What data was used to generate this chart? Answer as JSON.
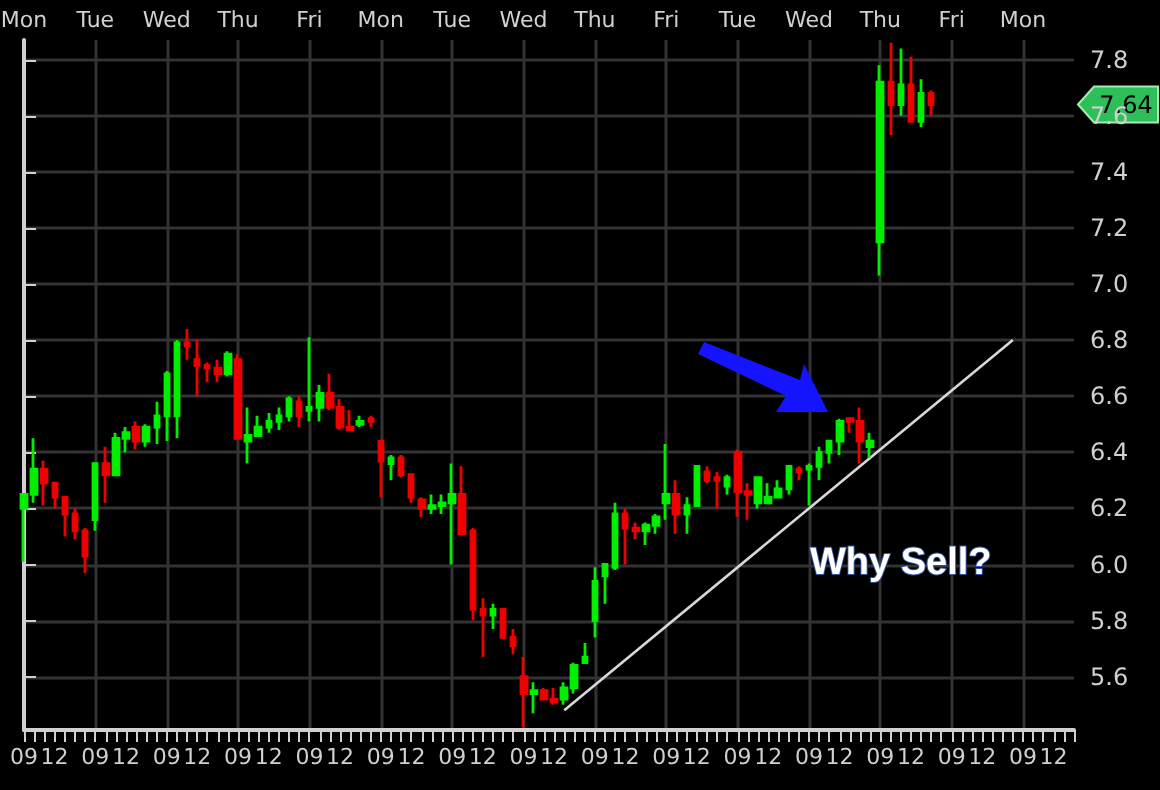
{
  "chart_data": {
    "type": "candlestick",
    "categories": [
      "09",
      null,
      null,
      "12",
      null,
      null,
      null,
      "09",
      null,
      null,
      "12",
      null,
      null,
      null,
      "09",
      null,
      null,
      "12",
      null,
      null,
      null,
      "09",
      null,
      null,
      "12",
      null,
      null,
      null,
      "09",
      null,
      null,
      "12",
      null,
      null,
      null,
      "09",
      null,
      null,
      "12",
      null,
      null,
      null,
      "09",
      null,
      null,
      "12",
      null,
      null,
      null,
      "09",
      null,
      null,
      "12",
      null,
      null,
      null,
      "09",
      null,
      null,
      "12",
      null,
      null,
      null,
      "09",
      null,
      null,
      "12",
      null,
      null,
      null,
      "09",
      null,
      null,
      "12",
      null,
      null,
      null,
      "09",
      null,
      null,
      "12",
      null,
      null,
      null,
      "09",
      null,
      null,
      "12",
      null,
      null,
      null,
      "09",
      null,
      null,
      "12",
      null,
      null,
      null,
      "09",
      null,
      null,
      "12",
      null,
      null
    ],
    "ohlc": [
      [
        6.2,
        6.25,
        6.01,
        6.25
      ],
      [
        6.25,
        6.45,
        6.22,
        6.34
      ],
      [
        6.34,
        6.37,
        6.21,
        6.29
      ],
      [
        6.29,
        6.29,
        6.2,
        6.24
      ],
      [
        6.24,
        6.24,
        6.1,
        6.18
      ],
      [
        6.18,
        6.2,
        6.09,
        6.12
      ],
      [
        6.12,
        6.13,
        5.97,
        6.03
      ],
      [
        6.16,
        6.36,
        6.12,
        6.36
      ],
      [
        6.36,
        6.42,
        6.22,
        6.32
      ],
      [
        6.32,
        6.47,
        6.32,
        6.45
      ],
      [
        6.45,
        6.49,
        6.4,
        6.47
      ],
      [
        6.49,
        6.51,
        6.41,
        6.44
      ],
      [
        6.44,
        6.5,
        6.42,
        6.49
      ],
      [
        6.49,
        6.58,
        6.43,
        6.53
      ],
      [
        6.53,
        6.69,
        6.44,
        6.68
      ],
      [
        6.53,
        6.8,
        6.45,
        6.79
      ],
      [
        6.79,
        6.84,
        6.73,
        6.78
      ],
      [
        6.73,
        6.8,
        6.6,
        6.71
      ],
      [
        6.71,
        6.72,
        6.65,
        6.7
      ],
      [
        6.7,
        6.73,
        6.65,
        6.68
      ],
      [
        6.68,
        6.76,
        6.67,
        6.75
      ],
      [
        6.73,
        6.75,
        6.45,
        6.45
      ],
      [
        6.44,
        6.56,
        6.36,
        6.46
      ],
      [
        6.46,
        6.53,
        6.46,
        6.49
      ],
      [
        6.49,
        6.54,
        6.47,
        6.51
      ],
      [
        6.51,
        6.56,
        6.48,
        6.53
      ],
      [
        6.53,
        6.6,
        6.51,
        6.59
      ],
      [
        6.58,
        6.6,
        6.49,
        6.53
      ],
      [
        6.55,
        6.81,
        6.51,
        6.56
      ],
      [
        6.56,
        6.64,
        6.51,
        6.61
      ],
      [
        6.61,
        6.68,
        6.55,
        6.56
      ],
      [
        6.56,
        6.59,
        6.48,
        6.49
      ],
      [
        6.49,
        6.55,
        6.48,
        6.48
      ],
      [
        6.5,
        6.53,
        6.49,
        6.51
      ],
      [
        6.52,
        6.53,
        6.49,
        6.51
      ],
      [
        6.44,
        6.44,
        6.24,
        6.37
      ],
      [
        6.36,
        6.39,
        6.3,
        6.38
      ],
      [
        6.38,
        6.39,
        6.31,
        6.32
      ],
      [
        6.32,
        6.32,
        6.22,
        6.24
      ],
      [
        6.23,
        6.24,
        6.17,
        6.2
      ],
      [
        6.2,
        6.25,
        6.18,
        6.21
      ],
      [
        6.21,
        6.25,
        6.18,
        6.22
      ],
      [
        6.22,
        6.36,
        6.0,
        6.25
      ],
      [
        6.25,
        6.35,
        6.11,
        6.11
      ],
      [
        6.12,
        6.13,
        5.8,
        5.84
      ],
      [
        5.84,
        5.88,
        5.67,
        5.82
      ],
      [
        5.82,
        5.86,
        5.77,
        5.84
      ],
      [
        5.84,
        5.84,
        5.74,
        5.74
      ],
      [
        5.74,
        5.77,
        5.68,
        5.71
      ],
      [
        5.6,
        5.67,
        5.42,
        5.54
      ],
      [
        5.54,
        5.58,
        5.47,
        5.55
      ],
      [
        5.55,
        5.56,
        5.52,
        5.52
      ],
      [
        5.52,
        5.56,
        5.5,
        5.51
      ],
      [
        5.52,
        5.58,
        5.5,
        5.56
      ],
      [
        5.56,
        5.65,
        5.54,
        5.64
      ],
      [
        5.65,
        5.72,
        5.65,
        5.67
      ],
      [
        5.8,
        5.99,
        5.74,
        5.94
      ],
      [
        5.96,
        6.0,
        5.86,
        6.0
      ],
      [
        5.99,
        6.22,
        5.98,
        6.18
      ],
      [
        6.18,
        6.2,
        6.0,
        6.13
      ],
      [
        6.13,
        6.15,
        6.09,
        6.12
      ],
      [
        6.12,
        6.15,
        6.07,
        6.14
      ],
      [
        6.14,
        6.18,
        6.11,
        6.17
      ],
      [
        6.22,
        6.43,
        6.16,
        6.25
      ],
      [
        6.25,
        6.3,
        6.11,
        6.18
      ],
      [
        6.18,
        6.24,
        6.11,
        6.21
      ],
      [
        6.21,
        6.35,
        6.21,
        6.35
      ],
      [
        6.33,
        6.35,
        6.29,
        6.3
      ],
      [
        6.31,
        6.33,
        6.2,
        6.3
      ],
      [
        6.28,
        6.32,
        6.25,
        6.31
      ],
      [
        6.4,
        6.41,
        6.17,
        6.26
      ],
      [
        6.26,
        6.29,
        6.16,
        6.25
      ],
      [
        6.22,
        6.31,
        6.2,
        6.31
      ],
      [
        6.22,
        6.29,
        6.22,
        6.24
      ],
      [
        6.24,
        6.3,
        6.24,
        6.27
      ],
      [
        6.27,
        6.35,
        6.25,
        6.35
      ],
      [
        6.34,
        6.35,
        6.3,
        6.33
      ],
      [
        6.34,
        6.36,
        6.21,
        6.35
      ],
      [
        6.35,
        6.42,
        6.3,
        6.4
      ],
      [
        6.4,
        6.44,
        6.36,
        6.44
      ],
      [
        6.44,
        6.52,
        6.39,
        6.51
      ],
      [
        6.52,
        6.52,
        6.47,
        6.51
      ],
      [
        6.51,
        6.56,
        6.36,
        6.44
      ],
      [
        6.42,
        6.47,
        6.38,
        6.44
      ],
      [
        7.15,
        7.78,
        7.03,
        7.72
      ],
      [
        7.72,
        7.86,
        7.53,
        7.64
      ],
      [
        7.64,
        7.84,
        7.6,
        7.71
      ],
      [
        7.71,
        7.81,
        7.58,
        7.58
      ],
      [
        7.58,
        7.73,
        7.56,
        7.68
      ],
      [
        7.68,
        7.69,
        7.6,
        7.64
      ],
      null,
      null,
      null,
      null,
      null,
      null,
      null,
      null,
      null,
      null,
      null,
      null,
      null,
      null
    ],
    "colors": [
      "#00ee00",
      "#00ee00",
      "#ee0000",
      "#ee0000",
      "#ee0000",
      "#ee0000",
      "#ee0000",
      "#00ee00",
      "#ee0000",
      "#00ee00",
      "#00ee00",
      "#ee0000",
      "#00ee00",
      "#00ee00",
      "#00ee00",
      "#00ee00",
      "#ee0000",
      "#ee0000",
      "#ee0000",
      "#ee0000",
      "#00ee00",
      "#ee0000",
      "#00ee00",
      "#00ee00",
      "#00ee00",
      "#00ee00",
      "#00ee00",
      "#ee0000",
      "#00ee00",
      "#00ee00",
      "#ee0000",
      "#ee0000",
      "#ee0000",
      "#00ee00",
      "#ee0000",
      "#ee0000",
      "#00ee00",
      "#ee0000",
      "#ee0000",
      "#ee0000",
      "#00ee00",
      "#00ee00",
      "#00ee00",
      "#ee0000",
      "#ee0000",
      "#ee0000",
      "#00ee00",
      "#ee0000",
      "#ee0000",
      "#ee0000",
      "#00ee00",
      "#ee0000",
      "#ee0000",
      "#00ee00",
      "#00ee00",
      "#00ee00",
      "#00ee00",
      "#00ee00",
      "#00ee00",
      "#ee0000",
      "#ee0000",
      "#00ee00",
      "#00ee00",
      "#00ee00",
      "#ee0000",
      "#00ee00",
      "#00ee00",
      "#ee0000",
      "#ee0000",
      "#00ee00",
      "#ee0000",
      "#ee0000",
      "#00ee00",
      "#00ee00",
      "#00ee00",
      "#00ee00",
      "#ee0000",
      "#00ee00",
      "#00ee00",
      "#00ee00",
      "#00ee00",
      "#ee0000",
      "#ee0000",
      "#00ee00",
      "#00ee00",
      "#ee0000",
      "#00ee00",
      "#ee0000",
      "#00ee00",
      "#ee0000",
      null,
      null,
      null,
      null,
      null,
      null,
      null,
      null,
      null,
      null,
      null,
      null,
      null,
      null
    ],
    "series": [
      {
        "type": "line",
        "values": [
          null,
          null,
          null,
          null,
          null,
          null,
          null,
          null,
          null,
          null,
          null,
          null,
          null,
          null,
          null,
          null,
          null,
          null,
          null,
          null,
          null,
          null,
          null,
          null,
          null,
          null,
          null,
          null,
          null,
          null,
          null,
          null,
          null,
          null,
          null,
          null,
          null,
          null,
          null,
          null,
          null,
          null,
          null,
          null,
          null,
          null,
          null,
          null,
          null,
          null,
          null,
          null,
          null,
          5.48,
          null,
          null,
          null,
          null,
          null,
          null,
          null,
          null,
          null,
          null,
          null,
          null,
          null,
          null,
          null,
          null,
          null,
          null,
          null,
          null,
          null,
          null,
          null,
          null,
          null,
          null,
          null,
          null,
          null,
          null,
          null,
          null,
          null,
          null,
          null,
          null,
          null,
          null,
          null,
          null,
          null,
          null,
          null,
          6.8,
          null,
          null,
          null,
          null,
          null,
          null
        ],
        "color": "#d8d8d8"
      }
    ],
    "ylim": [
      5.41,
      7.87
    ],
    "yticks": [
      5.6,
      5.8,
      {
        "value": 6,
        "label": "6.0"
      },
      6.2,
      6.4,
      6.6,
      6.8,
      {
        "value": 7,
        "label": "7.0"
      },
      7.2,
      7.4,
      7.6,
      7.8
    ],
    "grid": true,
    "annotations": [
      "Mon",
      "Tue",
      "Wed",
      "Thu",
      "Fri",
      "Mon",
      "Tue",
      "Wed",
      "Thu",
      "Fri",
      "Tue",
      "Wed",
      "Thu",
      "Fri",
      "Mon",
      "Why Sell?",
      "7.64"
    ]
  }
}
